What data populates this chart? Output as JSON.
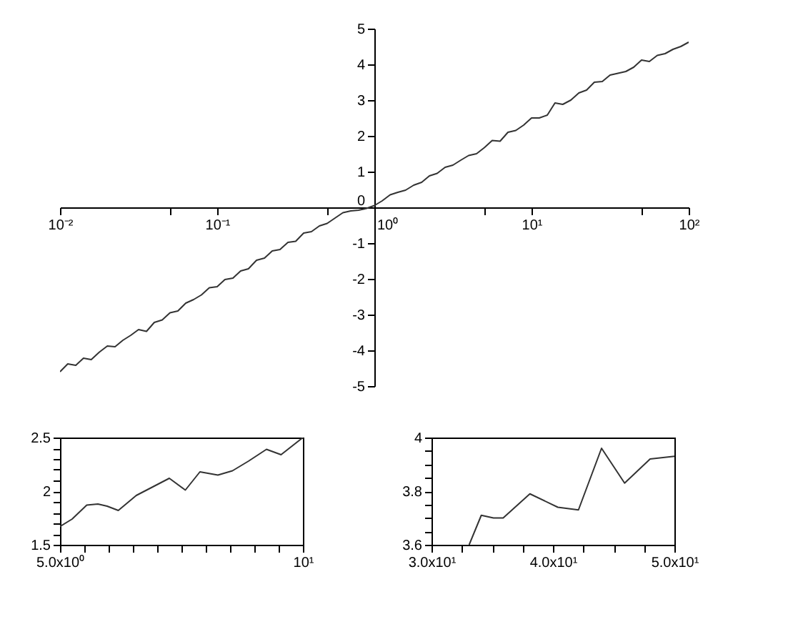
{
  "chart_data": [
    {
      "type": "line",
      "log": "x",
      "color": "#333333",
      "grid": false,
      "x": [
        0.01,
        0.0112,
        0.0126,
        0.0141,
        0.0158,
        0.0178,
        0.02,
        0.0224,
        0.0251,
        0.0282,
        0.0316,
        0.0355,
        0.0398,
        0.0447,
        0.0501,
        0.0562,
        0.0631,
        0.0708,
        0.0794,
        0.0891,
        0.1,
        0.112,
        0.126,
        0.141,
        0.158,
        0.178,
        0.2,
        0.224,
        0.251,
        0.282,
        0.316,
        0.355,
        0.398,
        0.447,
        0.501,
        0.562,
        0.631,
        0.708,
        0.794,
        0.891,
        1,
        1.12,
        1.26,
        1.41,
        1.58,
        1.78,
        2,
        2.24,
        2.51,
        2.82,
        3.16,
        3.55,
        3.98,
        4.47,
        5.01,
        5.62,
        6.31,
        7.08,
        7.94,
        8.91,
        10,
        11.2,
        12.6,
        14.1,
        15.8,
        17.8,
        20,
        22.4,
        25.1,
        28.2,
        31.6,
        35.5,
        39.8,
        44.7,
        50.1,
        56.2,
        63.1,
        70.8,
        79.4,
        89.1,
        100
      ],
      "values": [
        -4.6,
        -4.38,
        -4.42,
        -4.22,
        -4.26,
        -4.05,
        -3.88,
        -3.9,
        -3.72,
        -3.58,
        -3.42,
        -3.47,
        -3.22,
        -3.15,
        -2.95,
        -2.9,
        -2.68,
        -2.58,
        -2.45,
        -2.25,
        -2.22,
        -2.02,
        -1.98,
        -1.78,
        -1.72,
        -1.48,
        -1.42,
        -1.22,
        -1.18,
        -0.98,
        -0.95,
        -0.72,
        -0.68,
        -0.52,
        -0.45,
        -0.3,
        -0.15,
        -0.1,
        -0.08,
        -0.03,
        0.05,
        0.18,
        0.35,
        0.42,
        0.48,
        0.62,
        0.7,
        0.88,
        0.95,
        1.12,
        1.18,
        1.32,
        1.45,
        1.5,
        1.67,
        1.87,
        1.85,
        2.1,
        2.15,
        2.3,
        2.5,
        2.5,
        2.58,
        2.92,
        2.88,
        3.0,
        3.2,
        3.28,
        3.5,
        3.52,
        3.7,
        3.75,
        3.8,
        3.92,
        4.12,
        4.08,
        4.25,
        4.3,
        4.42,
        4.5,
        4.62
      ],
      "xlim": [
        0.01,
        100
      ],
      "ylim": [
        -5,
        5
      ],
      "xticks": [
        {
          "value": 0.01,
          "label": "10⁻²"
        },
        {
          "value": 0.05,
          "label": null
        },
        {
          "value": 0.1,
          "label": "10⁻¹"
        },
        {
          "value": 0.5,
          "label": null
        },
        {
          "value": 1,
          "label": "10⁰"
        },
        {
          "value": 5,
          "label": null
        },
        {
          "value": 10,
          "label": "10¹"
        },
        {
          "value": 50,
          "label": null
        },
        {
          "value": 100,
          "label": "10²"
        }
      ],
      "yticks": [
        -5,
        -4,
        -3,
        -2,
        -1,
        0,
        1,
        2,
        3,
        4,
        5
      ]
    },
    {
      "type": "line",
      "color": "#333333",
      "grid": false,
      "x": [
        5,
        5.25,
        5.55,
        5.78,
        5.97,
        6.2,
        6.57,
        7.25,
        7.58,
        7.88,
        8.25,
        8.55,
        8.88,
        9.25,
        9.55,
        10
      ],
      "values": [
        1.67,
        1.74,
        1.87,
        1.88,
        1.86,
        1.82,
        1.96,
        2.12,
        2.01,
        2.18,
        2.15,
        2.19,
        2.28,
        2.39,
        2.34,
        2.5
      ],
      "xlim": [
        5,
        10
      ],
      "ylim": [
        1.5,
        2.5
      ],
      "xticks": [
        {
          "value": 5,
          "label": "5.0x10⁰"
        },
        {
          "value": 5.5,
          "label": null
        },
        {
          "value": 6,
          "label": null
        },
        {
          "value": 6.5,
          "label": null
        },
        {
          "value": 7,
          "label": null
        },
        {
          "value": 7.5,
          "label": null
        },
        {
          "value": 8,
          "label": null
        },
        {
          "value": 8.5,
          "label": null
        },
        {
          "value": 9,
          "label": null
        },
        {
          "value": 9.5,
          "label": null
        },
        {
          "value": 10,
          "label": "10¹"
        }
      ],
      "yticks": [
        1.5,
        {
          "value": 1.6,
          "label": null
        },
        {
          "value": 1.7,
          "label": null
        },
        {
          "value": 1.8,
          "label": null
        },
        {
          "value": 1.9,
          "label": null
        },
        2,
        {
          "value": 2.1,
          "label": null
        },
        {
          "value": 2.2,
          "label": null
        },
        {
          "value": 2.3,
          "label": null
        },
        {
          "value": 2.4,
          "label": null
        },
        2.5
      ]
    },
    {
      "type": "line",
      "color": "#333333",
      "grid": false,
      "x": [
        33.1,
        34.1,
        35.1,
        35.9,
        38.1,
        40.4,
        42.1,
        44,
        45.9,
        48,
        50
      ],
      "values": [
        3.6,
        3.71,
        3.7,
        3.7,
        3.79,
        3.74,
        3.73,
        3.96,
        3.83,
        3.92,
        3.93
      ],
      "xlim": [
        30,
        50
      ],
      "ylim": [
        3.6,
        4
      ],
      "xticks": [
        {
          "value": 30,
          "label": "3.0x10¹"
        },
        {
          "value": 32.5,
          "label": null
        },
        {
          "value": 35,
          "label": null
        },
        {
          "value": 37.5,
          "label": null
        },
        {
          "value": 40,
          "label": "4.0x10¹"
        },
        {
          "value": 42.5,
          "label": null
        },
        {
          "value": 45,
          "label": null
        },
        {
          "value": 47.5,
          "label": null
        },
        {
          "value": 50,
          "label": "5.0x10¹"
        }
      ],
      "yticks": [
        3.6,
        {
          "value": 3.65,
          "label": null
        },
        3.8,
        {
          "value": 3.75,
          "label": null
        },
        {
          "value": 3.7,
          "label": null
        },
        {
          "value": 3.85,
          "label": null
        },
        {
          "value": 3.9,
          "label": null
        },
        {
          "value": 3.95,
          "label": null
        },
        4
      ]
    }
  ]
}
